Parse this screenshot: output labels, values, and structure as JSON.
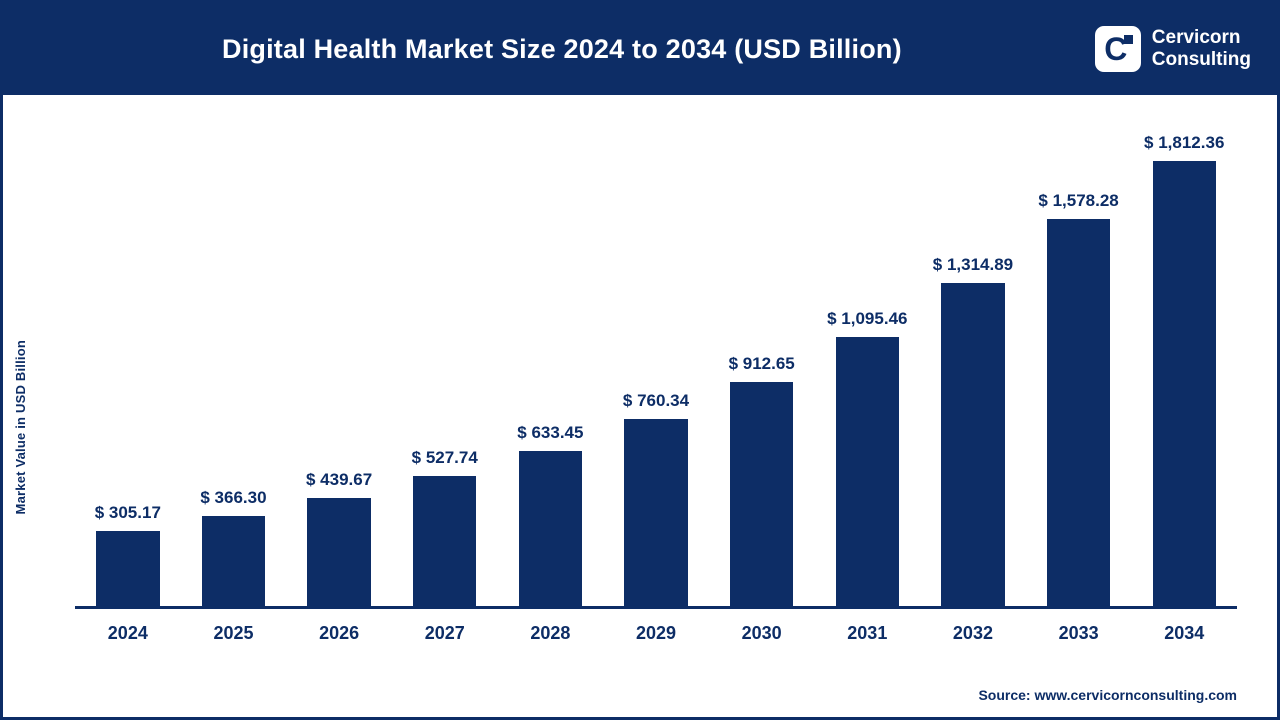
{
  "colors": {
    "primary": "#0d2d66",
    "background": "#ffffff",
    "text_on_primary": "#ffffff"
  },
  "header": {
    "title": "Digital Health Market Size 2024 to 2034 (USD Billion)",
    "logo": {
      "mark": "C",
      "line1": "Cervicorn",
      "line2": "Consulting"
    }
  },
  "chart_data": {
    "type": "bar",
    "title": "Digital Health Market Size 2024 to 2034 (USD Billion)",
    "categories": [
      "2024",
      "2025",
      "2026",
      "2027",
      "2028",
      "2029",
      "2030",
      "2031",
      "2032",
      "2033",
      "2034"
    ],
    "values": [
      305.17,
      366.3,
      439.67,
      527.74,
      633.45,
      760.34,
      912.65,
      1095.46,
      1314.89,
      1578.28,
      1812.36
    ],
    "value_labels": [
      "$ 305.17",
      "$ 366.30",
      "$ 439.67",
      "$ 527.74",
      "$ 633.45",
      "$ 760.34",
      "$ 912.65",
      "$ 1,095.46",
      "$ 1,314.89",
      "$ 1,578.28",
      "$ 1,812.36"
    ],
    "xlabel": "",
    "ylabel": "Market Value in USD Billion",
    "ylim": [
      0,
      1900
    ],
    "grid": false,
    "legend": false,
    "bar_color": "#0d2d66"
  },
  "footer": {
    "source": "Source: www.cervicornconsulting.com"
  }
}
